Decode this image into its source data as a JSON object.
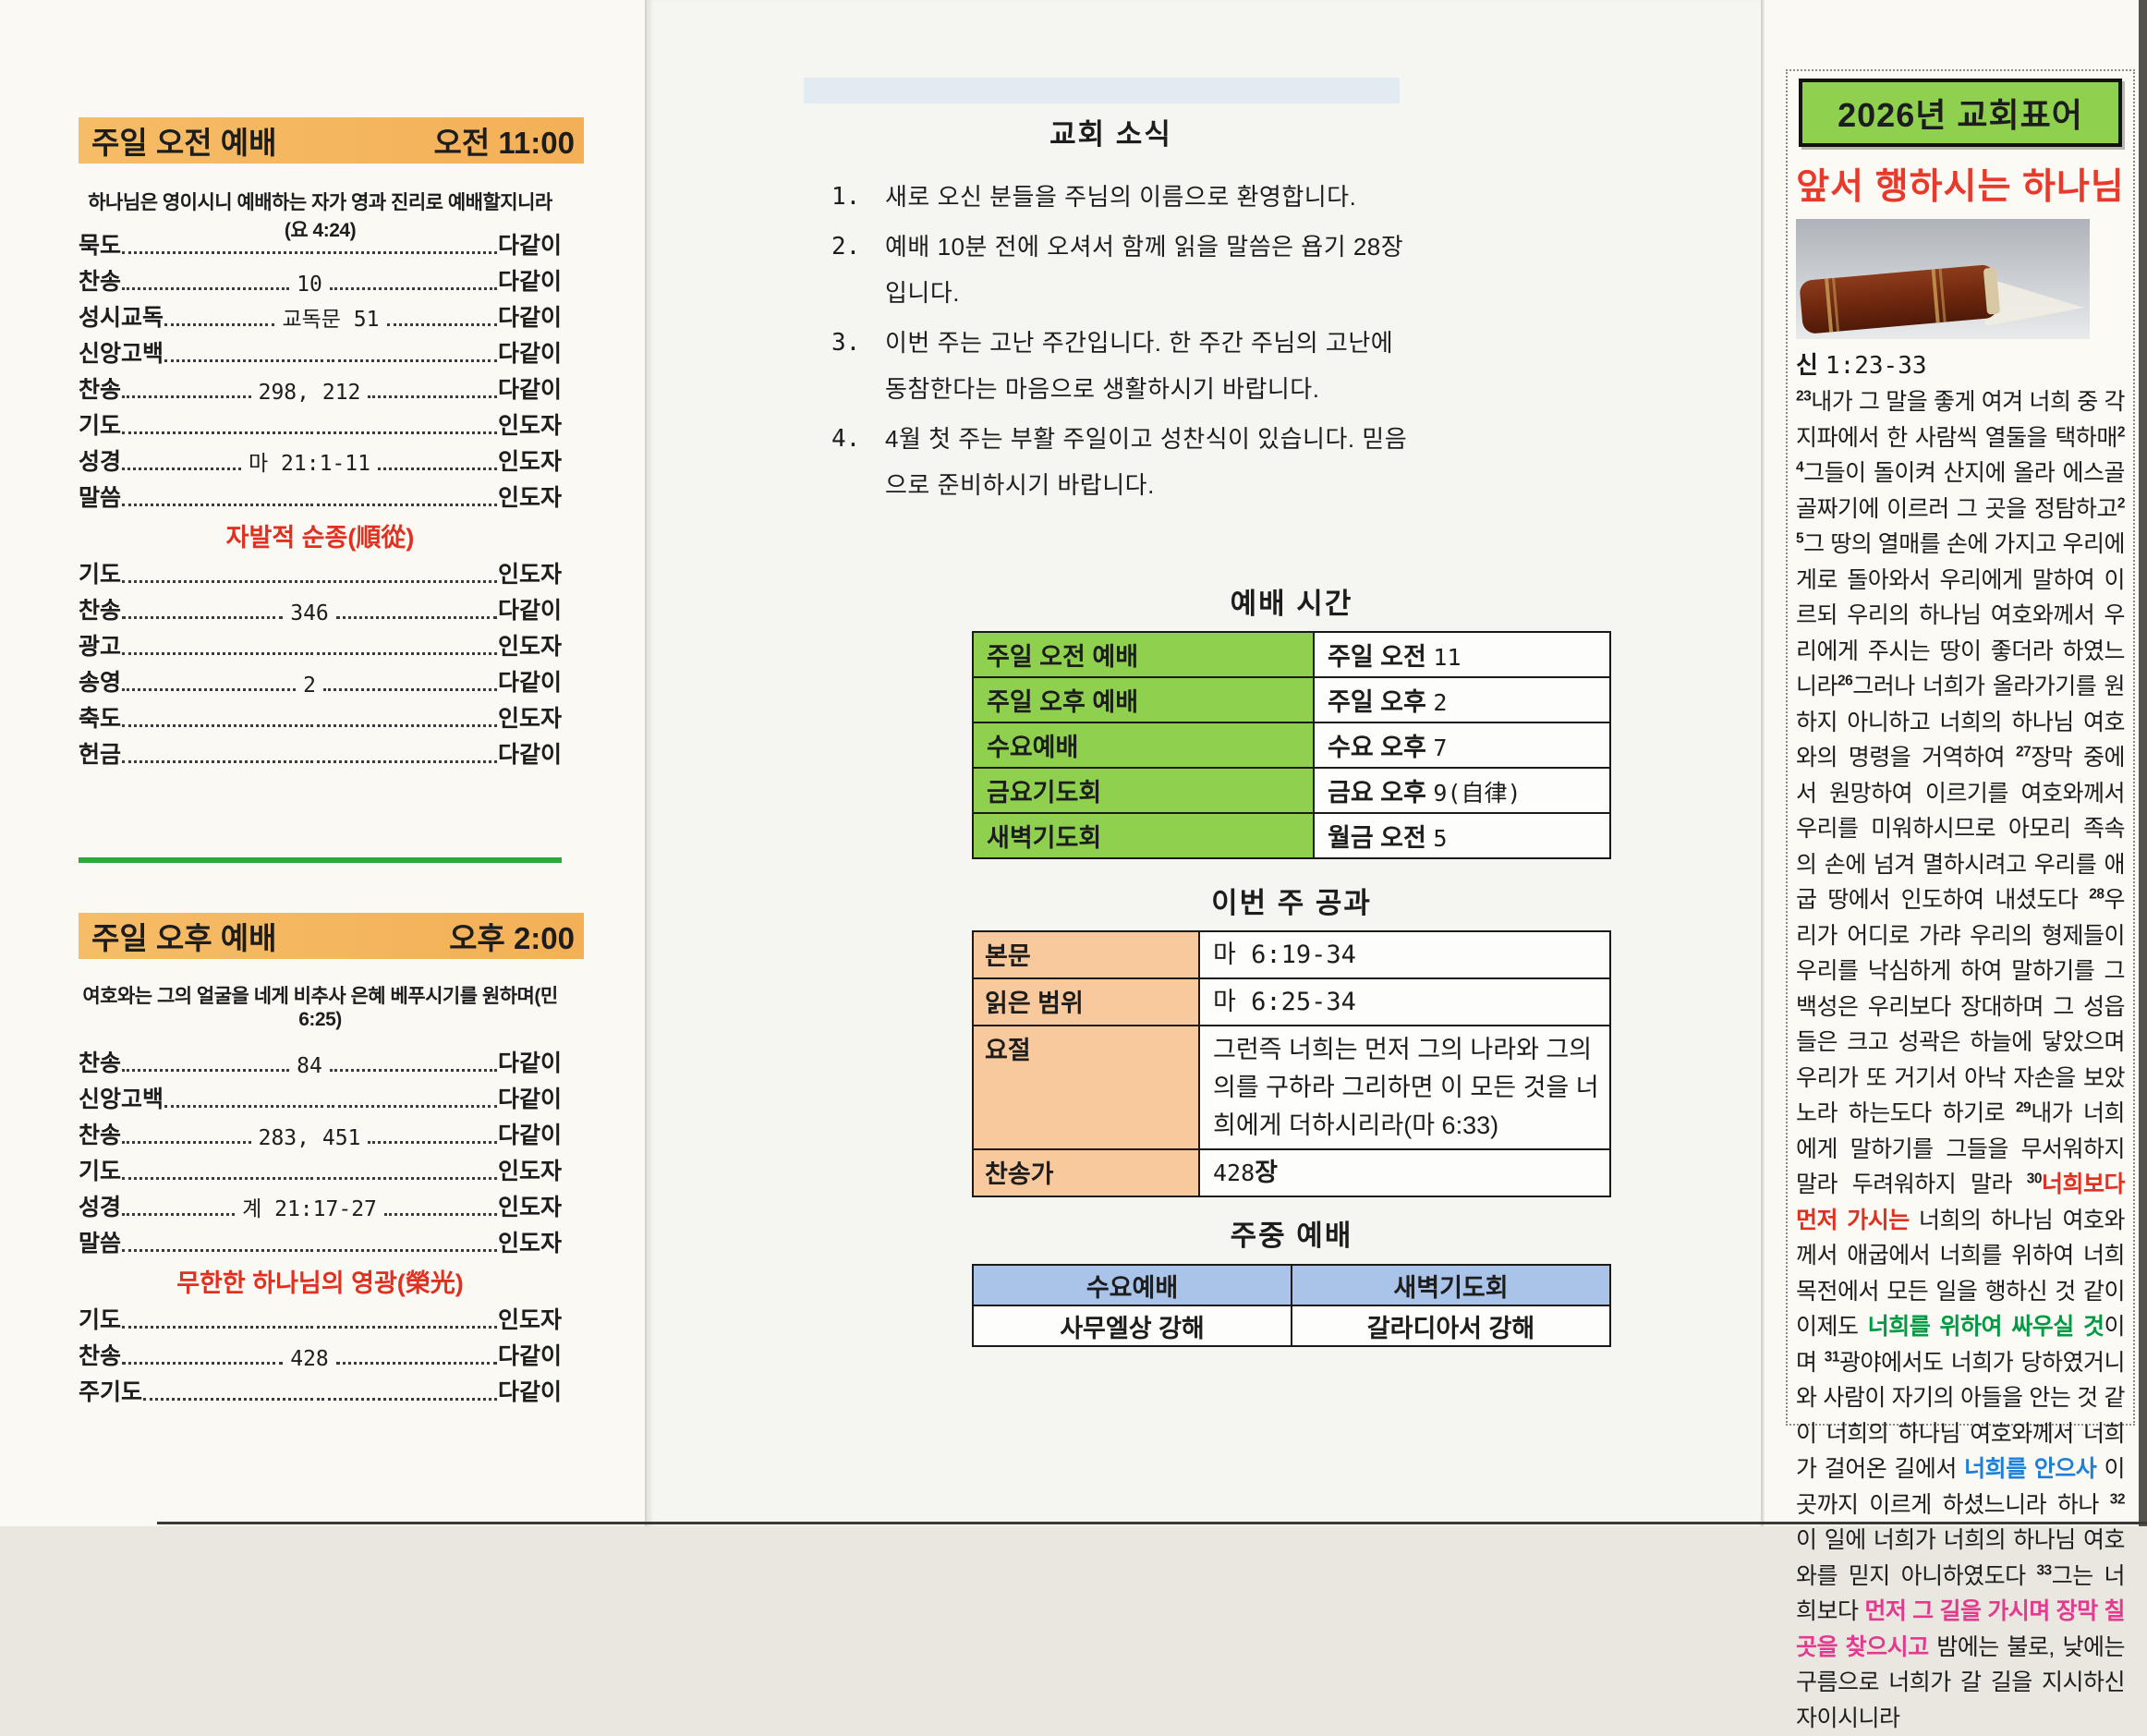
{
  "colors": {
    "header_orange": "#f4b660",
    "divider_green": "#2fa83a",
    "table_green": "#8fd14f",
    "table_peach": "#f9c99e",
    "table_blue": "#a9c3e9",
    "motto_red": "#e8392b",
    "hl_red": "#e03020",
    "hl_green": "#009944",
    "hl_blue": "#1e7fd8",
    "hl_pink": "#e23a8e"
  },
  "left": {
    "morning": {
      "header": "주일 오전 예배",
      "time": "오전 11:00",
      "verse": "하나님은 영이시니 예배하는 자가 영과 진리로 예배할지니라(요 4:24)",
      "rows1": [
        {
          "label": "묵도",
          "value": "",
          "who": "다같이"
        },
        {
          "label": "찬송",
          "value": "10",
          "who": "다같이"
        },
        {
          "label": "성시교독",
          "value": "교독문 51",
          "who": "다같이"
        },
        {
          "label": "신앙고백",
          "value": "",
          "who": "다같이"
        },
        {
          "label": "찬송",
          "value": "298, 212",
          "who": "다같이"
        },
        {
          "label": "기도",
          "value": "",
          "who": "인도자"
        },
        {
          "label": "성경",
          "value": "마 21:1-11",
          "who": "인도자"
        },
        {
          "label": "말씀",
          "value": "",
          "who": "인도자"
        }
      ],
      "sermon_title": "자발적 순종(順從)",
      "rows2": [
        {
          "label": "기도",
          "value": "",
          "who": "인도자"
        },
        {
          "label": "찬송",
          "value": "346",
          "who": "다같이"
        },
        {
          "label": "광고",
          "value": "",
          "who": "인도자"
        },
        {
          "label": "송영",
          "value": "2",
          "who": "다같이"
        },
        {
          "label": "축도",
          "value": "",
          "who": "인도자"
        },
        {
          "label": "헌금",
          "value": "",
          "who": "다같이"
        }
      ]
    },
    "afternoon": {
      "header": "주일 오후 예배",
      "time": "오후 2:00",
      "verse": "여호와는 그의 얼굴을 네게 비추사 은혜 베푸시기를 원하며(민 6:25)",
      "rows1": [
        {
          "label": "찬송",
          "value": "84",
          "who": "다같이"
        },
        {
          "label": "신앙고백",
          "value": "",
          "who": "다같이"
        },
        {
          "label": "찬송",
          "value": "283, 451",
          "who": "다같이"
        },
        {
          "label": "기도",
          "value": "",
          "who": "인도자"
        },
        {
          "label": "성경",
          "value": "계 21:17-27",
          "who": "인도자"
        },
        {
          "label": "말씀",
          "value": "",
          "who": "인도자"
        }
      ],
      "sermon_title": "무한한 하나님의 영광(榮光)",
      "rows2": [
        {
          "label": "기도",
          "value": "",
          "who": "인도자"
        },
        {
          "label": "찬송",
          "value": "428",
          "who": "다같이"
        },
        {
          "label": "주기도",
          "value": "",
          "who": "다같이"
        }
      ]
    }
  },
  "mid": {
    "news": {
      "title": "교회 소식",
      "items": [
        {
          "n": "1.",
          "t": "새로 오신 분들을 주님의 이름으로 환영합니다."
        },
        {
          "n": "2.",
          "t": "예배 10분 전에 오셔서 함께 읽을 말씀은 욥기 28장 입니다."
        },
        {
          "n": "3.",
          "t": "이번 주는 고난 주간입니다. 한 주간 주님의 고난에 동참한다는 마음으로 생활하시기 바랍니다."
        },
        {
          "n": "4.",
          "t": "4월 첫 주는 부활 주일이고 성찬식이 있습니다. 믿음으로 준비하시기 바랍니다."
        }
      ]
    },
    "times": {
      "title": "예배 시간",
      "rows": [
        {
          "name": "주일 오전 예배",
          "t_prefix": "주일 오전",
          "t_num": "11"
        },
        {
          "name": "주일 오후 예배",
          "t_prefix": "주일 오후",
          "t_num": "2"
        },
        {
          "name": "수요예배",
          "t_prefix": "수요 오후",
          "t_num": "7"
        },
        {
          "name": "금요기도회",
          "t_prefix": "금요 오후",
          "t_num": "9(自律)"
        },
        {
          "name": "새벽기도회",
          "t_prefix": "월금 오전",
          "t_num": "5"
        }
      ]
    },
    "lesson": {
      "title": "이번 주 공과",
      "rows": [
        {
          "label": "본문",
          "value": "마 6:19-34"
        },
        {
          "label": "읽은 범위",
          "value": "마 6:25-34"
        }
      ],
      "yojeol_label": "요절",
      "yojeol": "그런즉 너희는 먼저 그의 나라와 그의 의를 구하라 그리하면 이 모든 것을 너희에게 더하시리라(마 6:33)",
      "hymn_label": "찬송가",
      "hymn_num": "428",
      "hymn_suffix": "장"
    },
    "midweek": {
      "title": "주중 예배",
      "headers": [
        "수요예배",
        "새벽기도회"
      ],
      "values": [
        "사무엘상 강해",
        "갈라디아서 강해"
      ]
    }
  },
  "right": {
    "year_title": "2026년 교회표어",
    "motto": "앞서 행하시는 하나님",
    "ref_book": "신",
    "ref_range": "1:23-33",
    "segments": [
      {
        "sup": "23"
      },
      {
        "t": "내가 그 말을 좋게 여겨 너희 중 각 지파에서 한 사람씩 열둘을 택하매"
      },
      {
        "sup": "24"
      },
      {
        "t": "그들이 돌이켜 산지에 올라 에스골 골짜기에 이르러 그 곳을 정탐하고"
      },
      {
        "sup": "25"
      },
      {
        "t": "그 땅의 열매를 손에 가지고 우리에게로 돌아와서 우리에게 말하여 이르되 우리의 하나님 여호와께서 우리에게 주시는 땅이 좋더라 하였느니라"
      },
      {
        "sup": "26"
      },
      {
        "t": "그러나 너희가 올라가기를 원하지 아니하고 너희의 하나님 여호와의 명령을 거역하여 "
      },
      {
        "sup": "27"
      },
      {
        "t": "장막 중에서 원망하여 이르기를 여호와께서 우리를 미워하시므로 아모리 족속의 손에 넘겨 멸하시려고 우리를 애굽 땅에서 인도하여 내셨도다 "
      },
      {
        "sup": "28"
      },
      {
        "t": "우리가 어디로 가랴 우리의 형제들이 우리를 낙심하게 하여 말하기를 그 백성은 우리보다 장대하며 그 성읍들은 크고 성곽은 하늘에 닿았으며 우리가 또 거기서 아낙 자손을 보았노라 하는도다 하기로 "
      },
      {
        "sup": "29"
      },
      {
        "t": "내가 너희에게 말하기를 그들을 무서워하지 말라 두려워하지 말라 "
      },
      {
        "sup": "30"
      },
      {
        "t": "너희보다 먼저 가시는",
        "c": "red"
      },
      {
        "t": " 너희의 하나님 여호와께서 애굽에서 너희를 위하여 너희 목전에서 모든 일을 행하신 것 같이 이제도 "
      },
      {
        "t": "너희를 위하여 싸우실 것",
        "c": "green"
      },
      {
        "t": "이며 "
      },
      {
        "sup": "31"
      },
      {
        "t": "광야에서도 너희가 당하였거니와 사람이 자기의 아들을 안는 것 같이 너희의 하나님 여호와께서 너희가 걸어온 길에서 "
      },
      {
        "t": "너희를 안으사",
        "c": "blue"
      },
      {
        "t": " 이 곳까지 이르게 하셨느니라 하나 "
      },
      {
        "sup": "32"
      },
      {
        "t": "이 일에 너희가 너희의 하나님 여호와를 믿지 아니하였도다 "
      },
      {
        "sup": "33"
      },
      {
        "t": "그는 너희보다 "
      },
      {
        "t": "먼저 그 길을 가시며 장막 칠 곳을 찾으시고",
        "c": "pink"
      },
      {
        "t": " 밤에는 불로, 낮에는 구름으로 너희가 갈 길을 지시하신 자이시니라"
      }
    ]
  }
}
